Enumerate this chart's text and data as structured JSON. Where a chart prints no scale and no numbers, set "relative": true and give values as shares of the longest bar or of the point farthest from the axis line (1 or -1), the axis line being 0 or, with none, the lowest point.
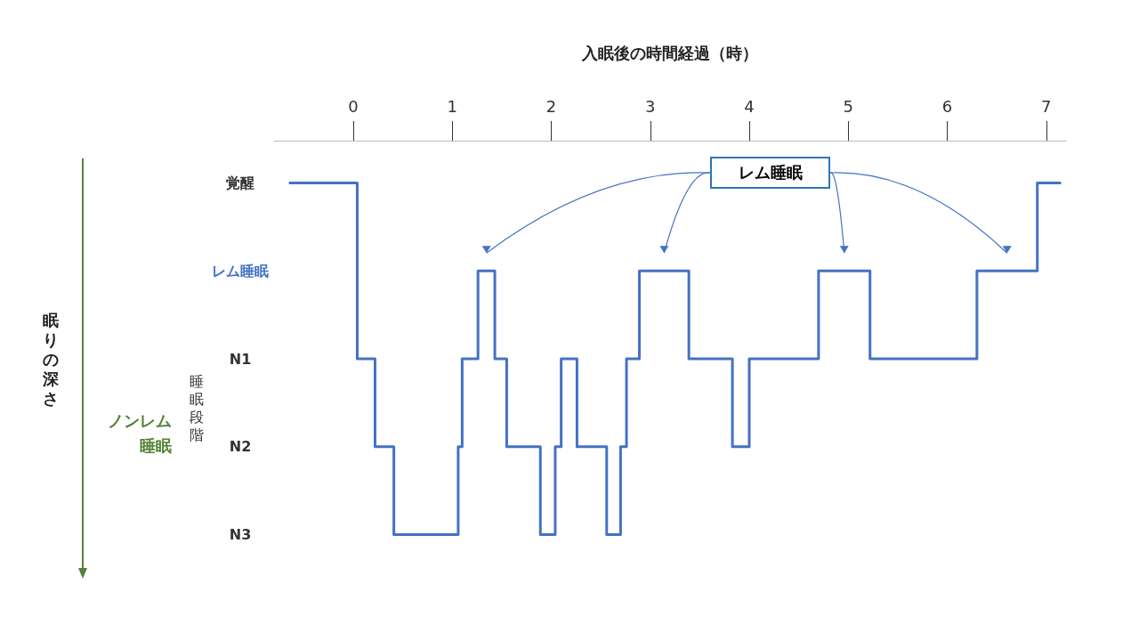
{
  "chart_data": {
    "type": "step",
    "xlabel": "入眠後の時間経過（時）",
    "relative": true,
    "x": [
      -0.65,
      0.04,
      0.22,
      0.41,
      1.06,
      1.1,
      1.26,
      1.43,
      1.55,
      1.89,
      2.04,
      2.1,
      2.26,
      2.56,
      2.7,
      2.76,
      2.89,
      3.39,
      3.83,
      4.0,
      4.7,
      5.22,
      6.3,
      6.91,
      7.15
    ],
    "series": [
      {
        "color": "#4472c4",
        "values": [
          1,
          0.5,
          0.25,
          0,
          0.25,
          0.5,
          0.75,
          0.5,
          0.25,
          0,
          0.25,
          0.5,
          0.25,
          0,
          0.25,
          0.5,
          0.75,
          0.5,
          0.25,
          0.5,
          0.75,
          0.5,
          0.75,
          1,
          1
        ]
      }
    ],
    "xlim": [
      -0.8,
      7.2
    ],
    "xticks": [
      0,
      1,
      2,
      3,
      4,
      5,
      6,
      7
    ],
    "annotations": [
      "レム睡眠",
      "ノンレム睡眠",
      "睡眠段階",
      "眠りの深さ",
      "覚醒",
      "レム睡眠",
      "N1",
      "N2",
      "N3"
    ],
    "grid": false,
    "marker": "none",
    "line_style": "solid"
  }
}
